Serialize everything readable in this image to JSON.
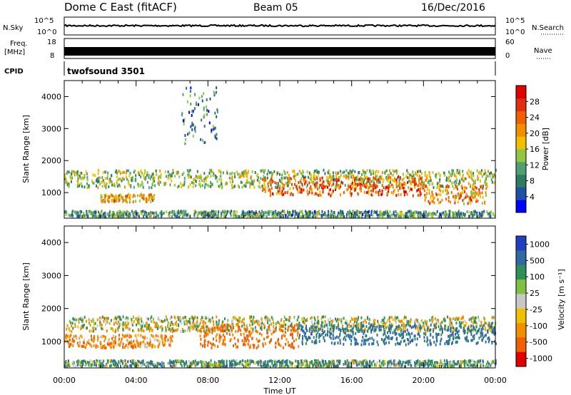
{
  "header": {
    "station": "Dome C East (fitACF)",
    "beam": "Beam 05",
    "date": "16/Dec/2016"
  },
  "noise_panel": {
    "left_label": "N.Sky",
    "right_label": "N.Search",
    "left_ticks": [
      "10^5",
      "10^0"
    ],
    "right_ticks": [
      "10^5",
      "10^0"
    ]
  },
  "freq_panel": {
    "left_label": "Freq.",
    "left_unit": "[MHz]",
    "right_label": "Nave",
    "left_ticks": [
      "18",
      "8"
    ],
    "right_ticks": [
      "60",
      "0"
    ]
  },
  "cpid_panel": {
    "label": "CPID",
    "value": "twofsound 3501"
  },
  "colors": {
    "power_scale": [
      "#0000ff",
      "#1f4fa8",
      "#2f7a60",
      "#4f9f70",
      "#8fc840",
      "#f0c000",
      "#f09000",
      "#f06000",
      "#e03010",
      "#e00000"
    ],
    "velocity_scale": [
      "#e00000",
      "#f06000",
      "#f09000",
      "#f0c000",
      "#c8c8c8",
      "#7fc040",
      "#2f8f5a",
      "#2f6aa0",
      "#1f3fc0"
    ]
  },
  "chart_data": [
    {
      "type": "heatmap",
      "name": "power",
      "ylabel": "Slant Range [km]",
      "xlabel": "",
      "xticks": [
        "00:00",
        "04:00",
        "08:00",
        "12:00",
        "16:00",
        "20:00",
        "00:00"
      ],
      "yticks": [
        "1000",
        "2000",
        "3000",
        "4000"
      ],
      "ylim": [
        200,
        4500
      ],
      "xlim_hours": [
        0,
        24
      ],
      "colorbar": {
        "label": "Power [dB]",
        "ticks": [
          "4",
          "8",
          "12",
          "16",
          "20",
          "24",
          "28"
        ],
        "range": [
          0,
          32
        ]
      },
      "echo_bands": [
        {
          "t0": 0,
          "t1": 24,
          "r0": 1150,
          "r1": 1700,
          "value": 14
        },
        {
          "t0": 11,
          "t1": 20,
          "r0": 900,
          "r1": 1500,
          "value": 24
        },
        {
          "t0": 20,
          "t1": 23.5,
          "r0": 650,
          "r1": 1200,
          "value": 22
        },
        {
          "t0": 0,
          "t1": 24,
          "r0": 230,
          "r1": 420,
          "value": 10
        },
        {
          "t0": 6.5,
          "t1": 8.5,
          "r0": 2500,
          "r1": 4300,
          "value": 9
        },
        {
          "t0": 2,
          "t1": 5,
          "r0": 700,
          "r1": 950,
          "value": 20
        }
      ]
    },
    {
      "type": "heatmap",
      "name": "velocity",
      "ylabel": "Slant Range [km]",
      "xlabel": "Time UT",
      "xticks": [
        "00:00",
        "04:00",
        "08:00",
        "12:00",
        "16:00",
        "20:00",
        "00:00"
      ],
      "yticks": [
        "1000",
        "2000",
        "3000",
        "4000"
      ],
      "ylim": [
        200,
        4500
      ],
      "xlim_hours": [
        0,
        24
      ],
      "colorbar": {
        "label": "Velocity [m s⁻¹]",
        "ticks": [
          "1000",
          "500",
          "100",
          "25",
          "-25",
          "-100",
          "-500",
          "-1000"
        ]
      },
      "echo_bands": [
        {
          "t0": 0,
          "t1": 24,
          "r0": 1300,
          "r1": 1750,
          "value": 0
        },
        {
          "t0": 7.5,
          "t1": 13,
          "r0": 800,
          "r1": 1500,
          "value": -150
        },
        {
          "t0": 13,
          "t1": 24,
          "r0": 900,
          "r1": 1500,
          "value": 150
        },
        {
          "t0": 0,
          "t1": 6,
          "r0": 800,
          "r1": 1200,
          "value": -80
        },
        {
          "t0": 0,
          "t1": 24,
          "r0": 230,
          "r1": 420,
          "value": 60
        }
      ]
    }
  ]
}
